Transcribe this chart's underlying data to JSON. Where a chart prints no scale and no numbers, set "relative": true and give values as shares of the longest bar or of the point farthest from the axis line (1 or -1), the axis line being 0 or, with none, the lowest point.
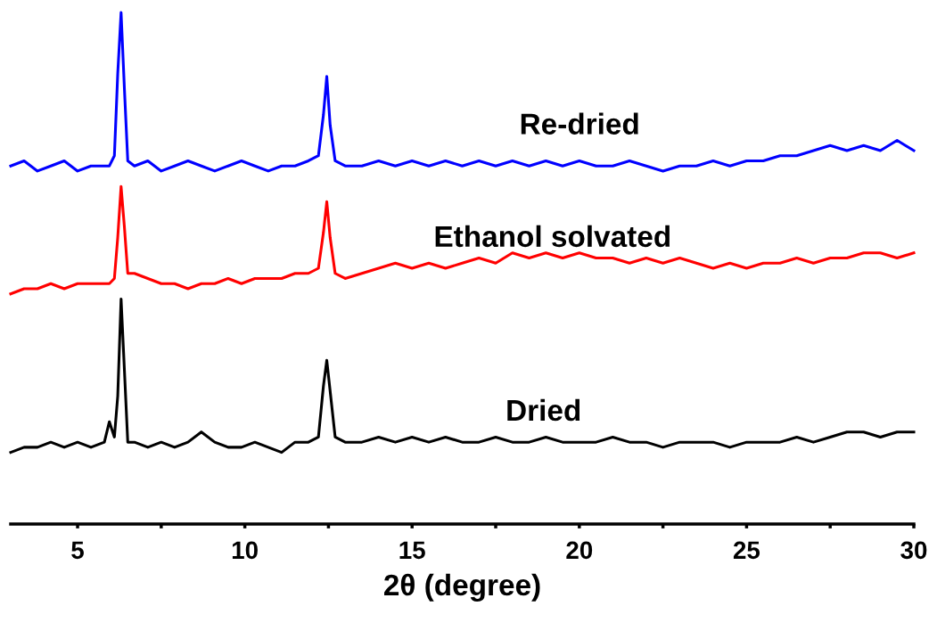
{
  "chart_data": {
    "type": "line",
    "relative": true,
    "xlabel": "2θ (degree)",
    "tick_labels": "x",
    "grid": false,
    "legend": false,
    "marker": "none",
    "line_style": "solid",
    "xlim": [
      3,
      30
    ],
    "xticks": [
      5,
      {
        "value": 7.5,
        "label": null
      },
      10,
      {
        "value": 12.5,
        "label": null
      },
      15,
      {
        "value": 17.5,
        "label": null
      },
      20,
      {
        "value": 22.5,
        "label": null
      },
      25,
      {
        "value": 27.5,
        "label": null
      },
      30
    ],
    "x": [
      3.0,
      3.4,
      3.8,
      4.2,
      4.6,
      5.0,
      5.4,
      5.8,
      5.95,
      6.1,
      6.2,
      6.3,
      6.4,
      6.5,
      6.7,
      7.1,
      7.5,
      7.9,
      8.3,
      8.7,
      9.1,
      9.5,
      9.9,
      10.3,
      10.7,
      11.1,
      11.5,
      11.9,
      12.2,
      12.35,
      12.45,
      12.55,
      12.7,
      13.0,
      13.5,
      14.0,
      14.5,
      15.0,
      15.5,
      16.0,
      16.5,
      17.0,
      17.5,
      18.0,
      18.5,
      19.0,
      19.5,
      20.0,
      20.5,
      21.0,
      21.5,
      22.0,
      22.5,
      23.0,
      23.5,
      24.0,
      24.5,
      25.0,
      25.5,
      26.0,
      26.5,
      27.0,
      27.5,
      28.0,
      28.5,
      29.0,
      29.5,
      30.0
    ],
    "series": [
      {
        "name": "Re-dried",
        "color": "#0000ff",
        "values": [
          0.7,
          0.71,
          0.69,
          0.7,
          0.71,
          0.69,
          0.7,
          0.7,
          0.7,
          0.72,
          0.88,
          1.0,
          0.85,
          0.71,
          0.7,
          0.71,
          0.69,
          0.7,
          0.71,
          0.7,
          0.69,
          0.7,
          0.71,
          0.7,
          0.69,
          0.7,
          0.7,
          0.71,
          0.72,
          0.8,
          0.875,
          0.78,
          0.71,
          0.7,
          0.7,
          0.71,
          0.7,
          0.71,
          0.7,
          0.71,
          0.7,
          0.71,
          0.7,
          0.71,
          0.7,
          0.71,
          0.7,
          0.71,
          0.7,
          0.7,
          0.71,
          0.7,
          0.69,
          0.7,
          0.7,
          0.71,
          0.7,
          0.71,
          0.71,
          0.72,
          0.72,
          0.73,
          0.74,
          0.73,
          0.74,
          0.73,
          0.75,
          0.73
        ]
      },
      {
        "name": "Ethanol solvated",
        "color": "#ff0000",
        "values": [
          0.45,
          0.46,
          0.46,
          0.47,
          0.46,
          0.47,
          0.47,
          0.47,
          0.47,
          0.48,
          0.56,
          0.66,
          0.58,
          0.49,
          0.49,
          0.48,
          0.47,
          0.47,
          0.46,
          0.47,
          0.47,
          0.48,
          0.47,
          0.48,
          0.48,
          0.48,
          0.49,
          0.49,
          0.5,
          0.57,
          0.63,
          0.56,
          0.49,
          0.48,
          0.49,
          0.5,
          0.51,
          0.5,
          0.51,
          0.5,
          0.51,
          0.52,
          0.51,
          0.53,
          0.52,
          0.53,
          0.52,
          0.53,
          0.52,
          0.52,
          0.51,
          0.52,
          0.51,
          0.52,
          0.51,
          0.5,
          0.51,
          0.5,
          0.51,
          0.51,
          0.52,
          0.51,
          0.52,
          0.52,
          0.53,
          0.53,
          0.52,
          0.53
        ]
      },
      {
        "name": "Dried",
        "color": "#000000",
        "values": [
          0.14,
          0.15,
          0.15,
          0.16,
          0.15,
          0.16,
          0.15,
          0.16,
          0.2,
          0.17,
          0.25,
          0.44,
          0.3,
          0.16,
          0.16,
          0.15,
          0.16,
          0.15,
          0.16,
          0.18,
          0.16,
          0.15,
          0.15,
          0.16,
          0.15,
          0.14,
          0.16,
          0.16,
          0.17,
          0.27,
          0.32,
          0.26,
          0.17,
          0.16,
          0.16,
          0.17,
          0.16,
          0.17,
          0.16,
          0.17,
          0.16,
          0.16,
          0.17,
          0.16,
          0.16,
          0.17,
          0.16,
          0.16,
          0.16,
          0.17,
          0.16,
          0.16,
          0.15,
          0.16,
          0.16,
          0.16,
          0.15,
          0.16,
          0.16,
          0.16,
          0.17,
          0.16,
          0.17,
          0.18,
          0.18,
          0.17,
          0.18,
          0.18
        ]
      }
    ]
  }
}
